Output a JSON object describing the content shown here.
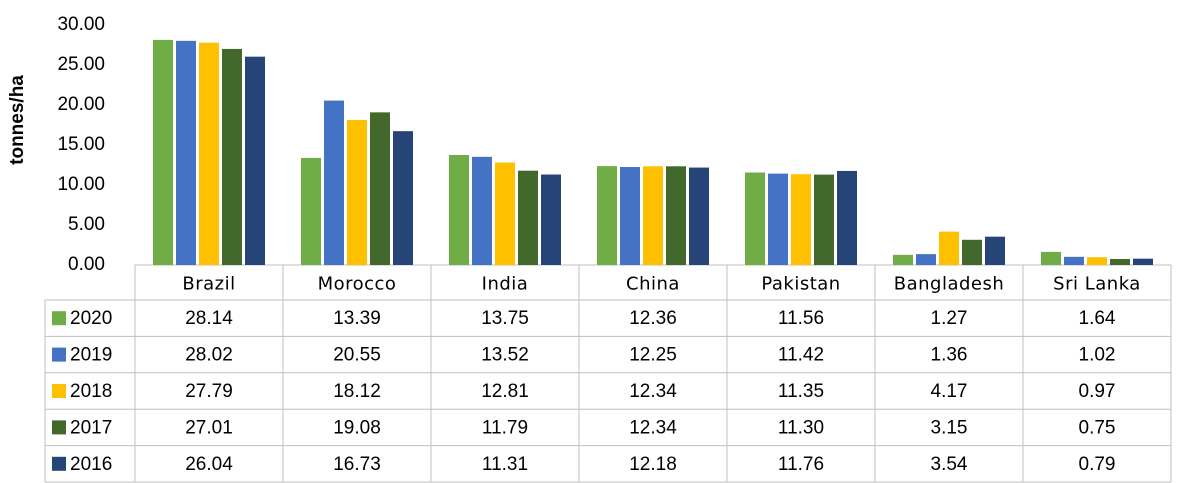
{
  "chart_data": {
    "type": "bar",
    "y_label": "tonnes/ha",
    "categories": [
      "Brazil",
      "Morocco",
      "India",
      "China",
      "Pakistan",
      "Bangladesh",
      "Sri Lanka"
    ],
    "ylim": [
      0,
      30
    ],
    "yticks": [
      {
        "value": 0,
        "label": "0.00"
      },
      {
        "value": 5,
        "label": "5.00"
      },
      {
        "value": 10,
        "label": "10.00"
      },
      {
        "value": 15,
        "label": "15.00"
      },
      {
        "value": 20,
        "label": "20.00"
      },
      {
        "value": 25,
        "label": "25.00"
      },
      {
        "value": 30,
        "label": "30.00"
      }
    ],
    "series": [
      {
        "name": "2020",
        "color": "#70ad47",
        "values": [
          28.14,
          13.39,
          13.75,
          12.36,
          11.56,
          1.27,
          1.64
        ],
        "value_labels": [
          "28.14",
          "13.39",
          "13.75",
          "12.36",
          "11.56",
          "1.27",
          "1.64"
        ]
      },
      {
        "name": "2019",
        "color": "#4472c4",
        "values": [
          28.02,
          20.55,
          13.52,
          12.25,
          11.42,
          1.36,
          1.02
        ],
        "value_labels": [
          "28.02",
          "20.55",
          "13.52",
          "12.25",
          "11.42",
          "1.36",
          "1.02"
        ]
      },
      {
        "name": "2018",
        "color": "#ffc000",
        "values": [
          27.79,
          18.12,
          12.81,
          12.34,
          11.35,
          4.17,
          0.97
        ],
        "value_labels": [
          "27.79",
          "18.12",
          "12.81",
          "12.34",
          "11.35",
          "4.17",
          "0.97"
        ]
      },
      {
        "name": "2017",
        "color": "#43682b",
        "values": [
          27.01,
          19.08,
          11.79,
          12.34,
          11.3,
          3.15,
          0.75
        ],
        "value_labels": [
          "27.01",
          "19.08",
          "11.79",
          "12.34",
          "11.30",
          "3.15",
          "0.75"
        ]
      },
      {
        "name": "2016",
        "color": "#264478",
        "values": [
          26.04,
          16.73,
          11.31,
          12.18,
          11.76,
          3.54,
          0.79
        ],
        "value_labels": [
          "26.04",
          "16.73",
          "11.31",
          "12.18",
          "11.76",
          "3.54",
          "0.79"
        ]
      }
    ]
  }
}
